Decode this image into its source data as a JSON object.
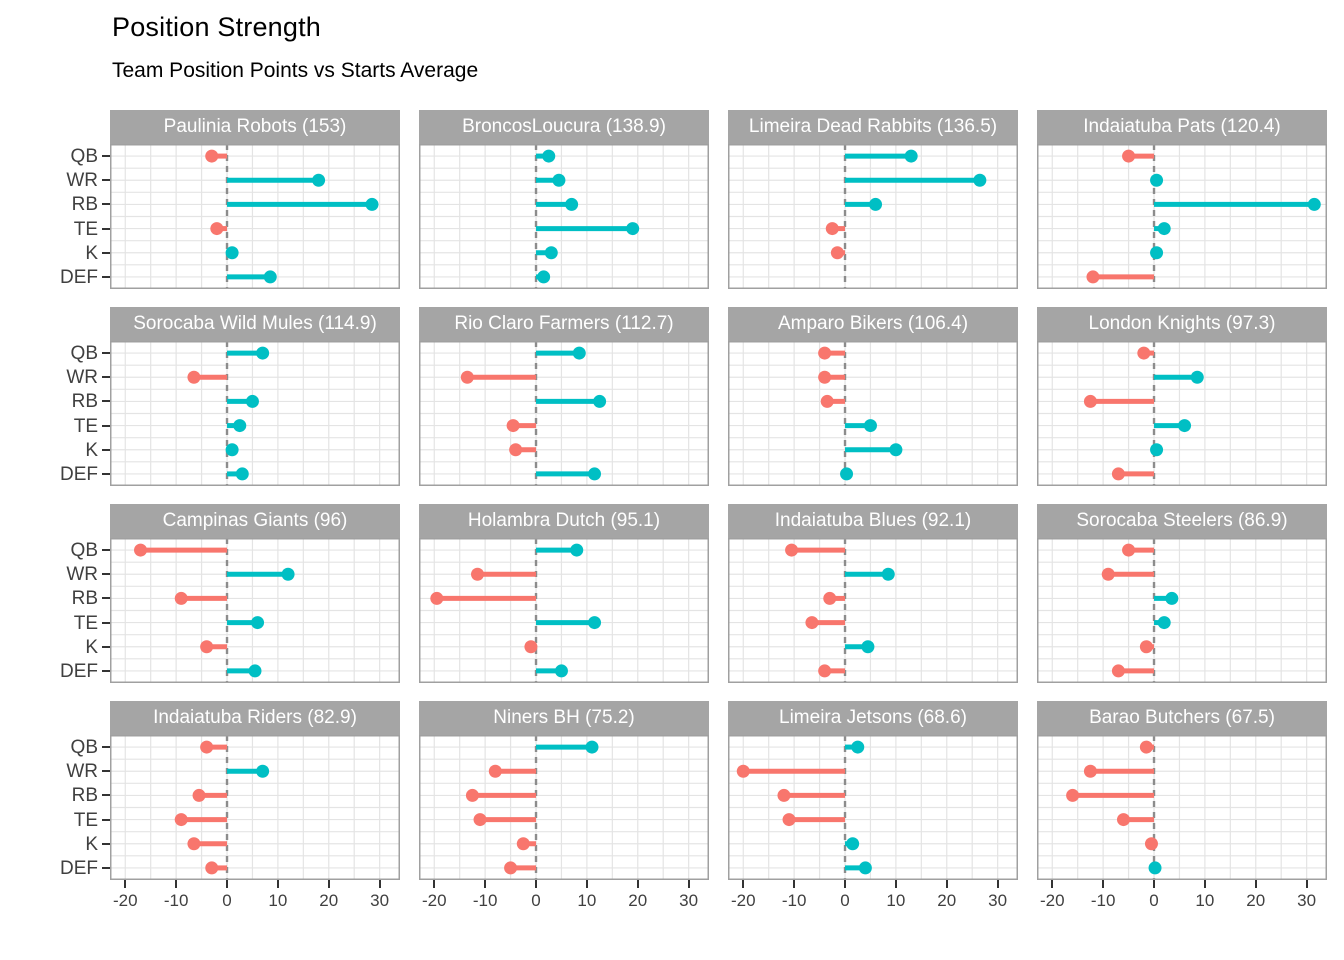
{
  "header": {
    "title": "Position Strength",
    "subtitle": "Team Position Points vs Starts Average"
  },
  "axes": {
    "y_labels": [
      "QB",
      "WR",
      "RB",
      "TE",
      "K",
      "DEF"
    ],
    "x_tick_labels": [
      "-20",
      "-10",
      "0",
      "10",
      "20",
      "30"
    ]
  },
  "chart_data": {
    "type": "lollipop-faceted",
    "title": "Position Strength",
    "subtitle": "Team Position Points vs Starts Average",
    "categories": [
      "QB",
      "WR",
      "RB",
      "TE",
      "K",
      "DEF"
    ],
    "x_ticks": [
      -20,
      -10,
      0,
      10,
      20,
      30
    ],
    "xlim": [
      -23,
      34
    ],
    "grid": true,
    "zero_line": "dashed",
    "colors": {
      "positive": "#00BFC4",
      "negative": "#F8766D",
      "strip_bg": "#A5A5A5",
      "strip_text": "#FFFFFF",
      "gridline": "#E4E4E4",
      "panel_border": "#A0A0A0",
      "zero_line": "#8C8C8C"
    },
    "facets": [
      {
        "team": "Paulinia Robots",
        "total": "153",
        "label": "Paulinia Robots (153)",
        "values": [
          -3,
          18,
          28.5,
          -2,
          1,
          8.5
        ]
      },
      {
        "team": "BroncosLoucura",
        "total": "138.9",
        "label": "BroncosLoucura (138.9)",
        "values": [
          2.5,
          4.5,
          7,
          19,
          3,
          1.5
        ]
      },
      {
        "team": "Limeira Dead Rabbits",
        "total": "136.5",
        "label": "Limeira Dead Rabbits (136.5)",
        "values": [
          13,
          26.5,
          6,
          -2.5,
          -1.5,
          null
        ]
      },
      {
        "team": "Indaiatuba Pats",
        "total": "120.4",
        "label": "Indaiatuba Pats (120.4)",
        "values": [
          -5,
          0.5,
          31.5,
          2,
          0.5,
          -12
        ]
      },
      {
        "team": "Sorocaba Wild Mules",
        "total": "114.9",
        "label": "Sorocaba Wild Mules (114.9)",
        "values": [
          7,
          -6.5,
          5,
          2.5,
          1,
          3
        ]
      },
      {
        "team": "Rio Claro Farmers",
        "total": "112.7",
        "label": "Rio Claro Farmers (112.7)",
        "values": [
          8.5,
          -13.5,
          12.5,
          -4.5,
          -4,
          11.5
        ]
      },
      {
        "team": "Amparo Bikers",
        "total": "106.4",
        "label": "Amparo Bikers (106.4)",
        "values": [
          -4,
          -4,
          -3.5,
          5,
          10,
          0.3
        ]
      },
      {
        "team": "London Knights",
        "total": "97.3",
        "label": "London Knights (97.3)",
        "values": [
          -2,
          8.5,
          -12.5,
          6,
          0.5,
          -7
        ]
      },
      {
        "team": "Campinas Giants",
        "total": "96",
        "label": "Campinas Giants (96)",
        "values": [
          -17,
          12,
          -9,
          6,
          -4,
          5.5
        ]
      },
      {
        "team": "Holambra Dutch",
        "total": "95.1",
        "label": "Holambra Dutch (95.1)",
        "values": [
          8,
          -11.5,
          -19.5,
          11.5,
          -1,
          5
        ]
      },
      {
        "team": "Indaiatuba Blues",
        "total": "92.1",
        "label": "Indaiatuba Blues (92.1)",
        "values": [
          -10.5,
          8.5,
          -3,
          -6.5,
          4.5,
          -4
        ]
      },
      {
        "team": "Sorocaba Steelers",
        "total": "86.9",
        "label": "Sorocaba Steelers (86.9)",
        "values": [
          -5,
          -9,
          3.5,
          2,
          -1.5,
          -7
        ]
      },
      {
        "team": "Indaiatuba Riders",
        "total": "82.9",
        "label": "Indaiatuba Riders (82.9)",
        "values": [
          -4,
          7,
          -5.5,
          -9,
          -6.5,
          -3
        ]
      },
      {
        "team": "Niners BH",
        "total": "75.2",
        "label": "Niners BH (75.2)",
        "values": [
          11,
          -8,
          -12.5,
          -11,
          -2.5,
          -5
        ]
      },
      {
        "team": "Limeira Jetsons",
        "total": "68.6",
        "label": "Limeira Jetsons (68.6)",
        "values": [
          2.5,
          -20,
          -12,
          -11,
          1.5,
          4
        ]
      },
      {
        "team": "Barao Butchers",
        "total": "67.5",
        "label": "Barao Butchers (67.5)",
        "values": [
          -1.5,
          -12.5,
          -16,
          -6,
          -0.5,
          0.2
        ]
      }
    ]
  }
}
